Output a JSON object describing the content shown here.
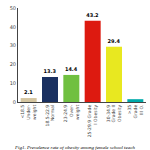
{
  "chart_data": {
    "type": "bar",
    "title": "Fig1. Prevalence rate of obesity among female school teach",
    "categories": [
      "<18.5\nUnder-\nweight",
      "18.5-22.9\nNormal",
      "23-24.9\nOver-\nweight",
      "25-29.9 Grade\nI Obesity",
      "30-34.9\nGrade II\nObesity",
      ">35\nGrade\nIII O."
    ],
    "values": [
      2.1,
      13.3,
      14.4,
      43.2,
      29.4,
      1.5
    ],
    "colors": [
      "#d4c5a0",
      "#1a3060",
      "#70c040",
      "#dd1a10",
      "#e8e820",
      "#00aaaa"
    ],
    "data_labels": true,
    "value_labels": [
      "2.1",
      "13.3",
      "14.4",
      "43.2",
      "29.4",
      null
    ],
    "ylim": [
      0,
      50
    ],
    "yticks": [
      0,
      10,
      20,
      30,
      40,
      50
    ],
    "grid": false
  }
}
